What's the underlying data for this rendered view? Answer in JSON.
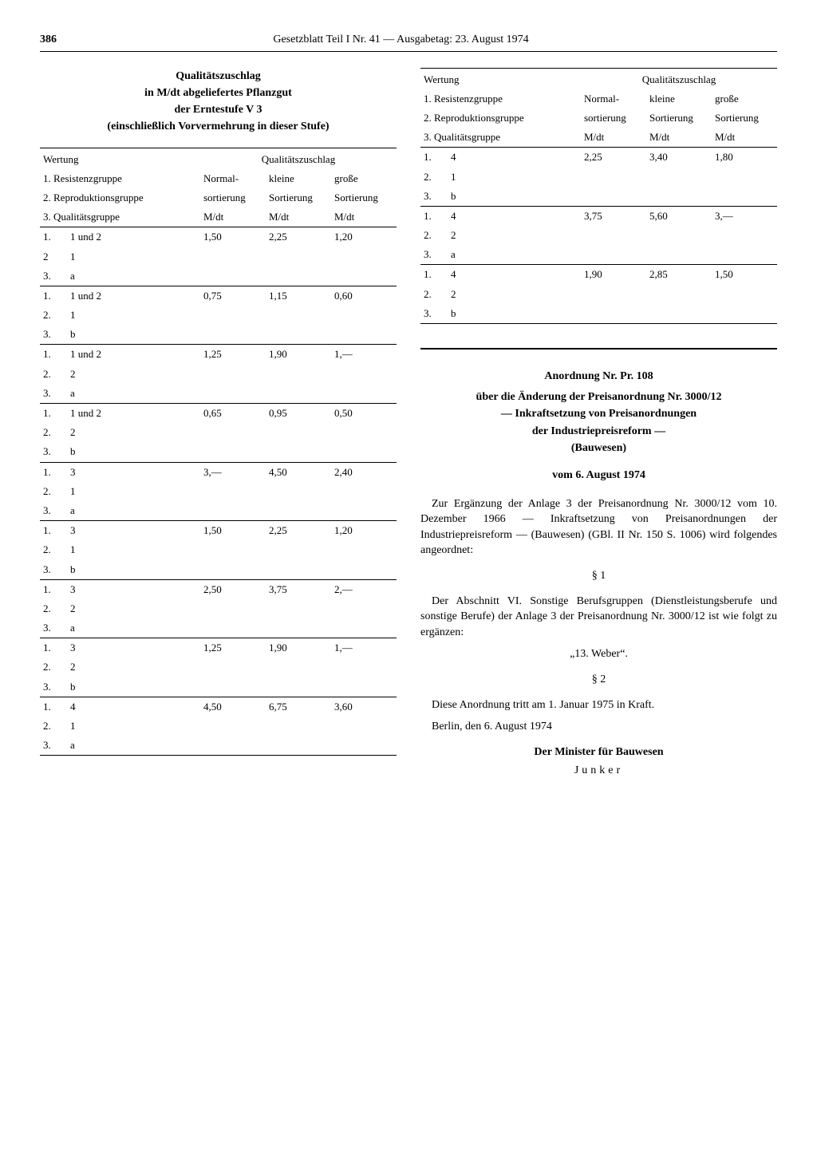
{
  "page_number": "386",
  "header_line": "Gesetzblatt Teil I Nr. 41 — Ausgabetag: 23. August 1974",
  "left": {
    "title_lines": [
      "Qualitätszuschlag",
      "in M/dt abgeliefertes Pflanzgut",
      "der Erntestufe V 3",
      "(einschließlich Vorvermehrung in dieser Stufe)"
    ],
    "header": {
      "left_labels": [
        "Wertung",
        "1. Resistenzgruppe",
        "2. Reproduktionsgruppe",
        "3. Qualitätsgruppe"
      ],
      "q_title": "Qualitätszuschlag",
      "cols": [
        [
          "Normal-",
          "sortierung",
          "M/dt"
        ],
        [
          "kleine",
          "Sortierung",
          "M/dt"
        ],
        [
          "große",
          "Sortierung",
          "M/dt"
        ]
      ]
    },
    "groups": [
      {
        "rows": [
          [
            "1.",
            "1 und 2"
          ],
          [
            "2",
            "1"
          ],
          [
            "3.",
            "a"
          ]
        ],
        "vals": [
          "1,50",
          "2,25",
          "1,20"
        ]
      },
      {
        "rows": [
          [
            "1.",
            "1 und 2"
          ],
          [
            "2.",
            "1"
          ],
          [
            "3.",
            "b"
          ]
        ],
        "vals": [
          "0,75",
          "1,15",
          "0,60"
        ]
      },
      {
        "rows": [
          [
            "1.",
            "1 und 2"
          ],
          [
            "2.",
            "2"
          ],
          [
            "3.",
            "a"
          ]
        ],
        "vals": [
          "1,25",
          "1,90",
          "1,—"
        ]
      },
      {
        "rows": [
          [
            "1.",
            "1 und 2"
          ],
          [
            "2.",
            "2"
          ],
          [
            "3.",
            "b"
          ]
        ],
        "vals": [
          "0,65",
          "0,95",
          "0,50"
        ]
      },
      {
        "rows": [
          [
            "1.",
            "3"
          ],
          [
            "2.",
            "1"
          ],
          [
            "3.",
            "a"
          ]
        ],
        "vals": [
          "3,—",
          "4,50",
          "2,40"
        ]
      },
      {
        "rows": [
          [
            "1.",
            "3"
          ],
          [
            "2.",
            "1"
          ],
          [
            "3.",
            "b"
          ]
        ],
        "vals": [
          "1,50",
          "2,25",
          "1,20"
        ]
      },
      {
        "rows": [
          [
            "1.",
            "3"
          ],
          [
            "2.",
            "2"
          ],
          [
            "3.",
            "a"
          ]
        ],
        "vals": [
          "2,50",
          "3,75",
          "2,—"
        ]
      },
      {
        "rows": [
          [
            "1.",
            "3"
          ],
          [
            "2.",
            "2"
          ],
          [
            "3.",
            "b"
          ]
        ],
        "vals": [
          "1,25",
          "1,90",
          "1,—"
        ]
      },
      {
        "rows": [
          [
            "1.",
            "4"
          ],
          [
            "2.",
            "1"
          ],
          [
            "3.",
            "a"
          ]
        ],
        "vals": [
          "4,50",
          "6,75",
          "3,60"
        ]
      }
    ]
  },
  "right_table": {
    "header": {
      "left_labels": [
        "Wertung",
        "1. Resistenzgruppe",
        "2. Reproduktionsgruppe",
        "3. Qualitätsgruppe"
      ],
      "q_title": "Qualitätszuschlag",
      "cols": [
        [
          "Normal-",
          "sortierung",
          "M/dt"
        ],
        [
          "kleine",
          "Sortierung",
          "M/dt"
        ],
        [
          "große",
          "Sortierung",
          "M/dt"
        ]
      ]
    },
    "groups": [
      {
        "rows": [
          [
            "1.",
            "4"
          ],
          [
            "2.",
            "1"
          ],
          [
            "3.",
            "b"
          ]
        ],
        "vals": [
          "2,25",
          "3,40",
          "1,80"
        ]
      },
      {
        "rows": [
          [
            "1.",
            "4"
          ],
          [
            "2.",
            "2"
          ],
          [
            "3.",
            "a"
          ]
        ],
        "vals": [
          "3,75",
          "5,60",
          "3,—"
        ]
      },
      {
        "rows": [
          [
            "1.",
            "4"
          ],
          [
            "2.",
            "2"
          ],
          [
            "3.",
            "b"
          ]
        ],
        "vals": [
          "1,90",
          "2,85",
          "1,50"
        ]
      }
    ]
  },
  "ordinance": {
    "title": "Anordnung Nr. Pr. 108",
    "subtitle_lines": [
      "über die Änderung der Preisanordnung Nr. 3000/12",
      "— Inkraftsetzung von Preisanordnungen",
      "der Industriepreisreform —",
      "(Bauwesen)"
    ],
    "date": "vom 6. August 1974",
    "para_intro": "Zur Ergänzung der Anlage 3 der Preisanordnung Nr. 3000/12 vom 10. Dezember 1966 — Inkraftsetzung von Preisanordnungen der Industriepreisreform — (Bauwesen) (GBl. II Nr. 150 S. 1006) wird folgendes angeordnet:",
    "s1_mark": "§ 1",
    "s1_text": "Der Abschnitt VI. Sonstige Berufsgruppen (Dienstleistungsberufe und sonstige Berufe) der Anlage 3 der Preisanordnung Nr. 3000/12 ist wie folgt zu ergänzen:",
    "s1_quote": "„13. Weber“.",
    "s2_mark": "§ 2",
    "s2_text": "Diese Anordnung tritt am 1. Januar 1975 in Kraft.",
    "place_date": "Berlin, den 6. August 1974",
    "sig_role": "Der Minister für Bauwesen",
    "sig_name": "Junker"
  }
}
